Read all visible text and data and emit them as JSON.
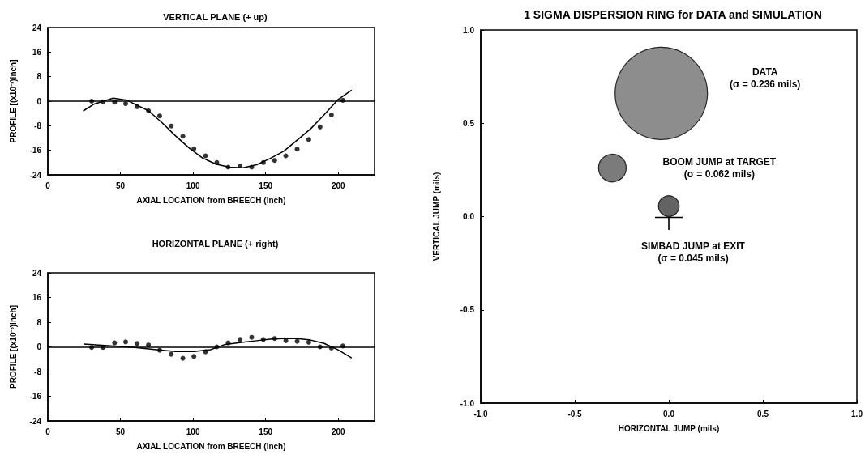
{
  "chart_data": [
    {
      "type": "scatter",
      "title": "VERTICAL PLANE (+ up)",
      "xlabel": "AXIAL LOCATION from BREECH (inch)",
      "ylabel": "PROFILE [(x10⁻³)inch]",
      "xlim": [
        0,
        225
      ],
      "xticks": [
        0,
        50,
        100,
        150,
        200
      ],
      "ylim": [
        -24,
        24
      ],
      "yticks": [
        -24,
        -16,
        -8,
        0,
        8,
        16,
        24
      ],
      "grid": false,
      "marker": "circle",
      "ref_lines": [
        {
          "axis": "y",
          "value": 0,
          "color": "#000000"
        }
      ],
      "series": [
        {
          "type": "scatter",
          "color": "#000000",
          "x": [
            30.2,
            38,
            46,
            53.6,
            61.5,
            69.3,
            77,
            85,
            93,
            100.6,
            108.6,
            116.4,
            124.2,
            132.4,
            140.4,
            148.4,
            156.2,
            163.9,
            171.7,
            179.7,
            187.5,
            195.3,
            203.2
          ],
          "values": [
            0,
            -0.2,
            -0.3,
            -0.8,
            -1.8,
            -3.1,
            -4.8,
            -8.1,
            -11.4,
            -15.5,
            -17.8,
            -20,
            -21.5,
            -21.1,
            -21.5,
            -20,
            -19.3,
            -17.8,
            -15.6,
            -12.5,
            -8.4,
            -4.5,
            0.3
          ]
        },
        {
          "type": "line",
          "color": "#000000",
          "marker": "none",
          "line_style": "solid",
          "x": [
            24.6,
            32,
            45,
            54.4,
            69.3,
            78.6,
            88,
            97.2,
            106.5,
            115.8,
            125,
            134.5,
            143.8,
            153,
            162.4,
            171.7,
            181,
            190.3,
            199.6,
            209
          ],
          "values": [
            -3.1,
            -0.9,
            1.0,
            0.3,
            -3.1,
            -7,
            -11.3,
            -15.2,
            -18.5,
            -20.5,
            -21.5,
            -21.7,
            -20.7,
            -18.7,
            -16.3,
            -12.7,
            -9,
            -4.4,
            0.4,
            3.5
          ]
        }
      ]
    },
    {
      "type": "scatter",
      "title": "HORIZONTAL PLANE (+ right)",
      "xlabel": "AXIAL LOCATION from BREECH (inch)",
      "ylabel": "PROFILE [(x10⁻³)inch]",
      "xlim": [
        0,
        225
      ],
      "xticks": [
        0,
        50,
        100,
        150,
        200
      ],
      "ylim": [
        -24,
        24
      ],
      "yticks": [
        -24,
        -16,
        -8,
        0,
        8,
        16,
        24
      ],
      "grid": false,
      "marker": "circle",
      "ref_lines": [
        {
          "axis": "y",
          "value": 0,
          "color": "#000000"
        }
      ],
      "series": [
        {
          "type": "scatter",
          "color": "#000000",
          "x": [
            30.2,
            38,
            46,
            53.6,
            61.5,
            69.3,
            77,
            85,
            93,
            100.6,
            108.6,
            116.4,
            124.2,
            132.4,
            140.4,
            148.4,
            156.2,
            163.9,
            171.7,
            179.7,
            187.5,
            195.3,
            203.2
          ],
          "values": [
            -0.2,
            -0.2,
            1.3,
            1.6,
            1.1,
            0.6,
            -1.1,
            -2.4,
            -3.7,
            -3.1,
            -1.6,
            0,
            1.3,
            2.4,
            3.1,
            2.4,
            2.7,
            2.0,
            1.8,
            1.5,
            0,
            -0.4,
            0.3
          ]
        },
        {
          "type": "line",
          "color": "#000000",
          "marker": "none",
          "line_style": "solid",
          "x": [
            25,
            41.3,
            60,
            74.9,
            88,
            100.9,
            112,
            121.4,
            134.4,
            143.8,
            153,
            162.4,
            171.7,
            181,
            190.3,
            199.6,
            209
          ],
          "values": [
            0.9,
            0.4,
            -0.2,
            -0.9,
            -1.5,
            -1.5,
            -0.9,
            0.7,
            1.5,
            2.0,
            2.5,
            2.7,
            2.7,
            2.2,
            1.1,
            -0.9,
            -3.5
          ]
        }
      ]
    },
    {
      "type": "bubble",
      "title": "1 SIGMA DISPERSION RING for DATA and SIMULATION",
      "xlabel": "HORIZONTAL JUMP (mils)",
      "ylabel": "VERTICAL JUMP (mils)",
      "xlim": [
        -1,
        1
      ],
      "xticks": [
        {
          "value": -1,
          "label": "-1.0"
        },
        {
          "value": -0.5,
          "label": "-0.5"
        },
        {
          "value": 0,
          "label": "0.0"
        },
        {
          "value": 0.5,
          "label": "0.5"
        },
        {
          "value": 1,
          "label": "1.0"
        }
      ],
      "ylim": [
        -1,
        1
      ],
      "yticks": [
        {
          "value": -1,
          "label": "-1.0"
        },
        {
          "value": -0.5,
          "label": "-0.5"
        },
        {
          "value": 0,
          "label": "0.0"
        },
        {
          "value": 0.5,
          "label": "0.5"
        },
        {
          "value": 1,
          "label": "1.0"
        }
      ],
      "grid": false,
      "x": [
        -0.04,
        -0.3,
        0.0
      ],
      "values": [
        0.66,
        0.26,
        0.056
      ],
      "sizes": [
        1,
        0.09,
        0.05
      ],
      "colors": [
        "#707070",
        "#5a5a5a",
        "#3c3c3c"
      ],
      "annotations": [
        "DATA\n(σ = 0.236 mils)",
        "BOOM JUMP at TARGET\n(σ = 0.062 mils)",
        "SIMBAD JUMP at EXIT\n(σ = 0.045 mils)"
      ]
    }
  ]
}
